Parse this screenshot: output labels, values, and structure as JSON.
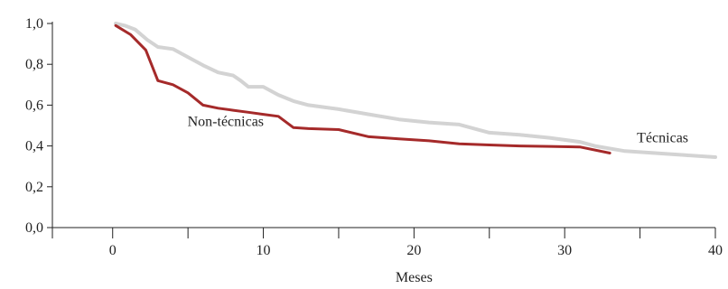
{
  "chart_data": {
    "type": "line",
    "title": "",
    "xlabel": "Meses",
    "ylabel": "",
    "xlim": [
      -4,
      40
    ],
    "ylim": [
      0,
      1
    ],
    "x_ticks": [
      0,
      10,
      20,
      30,
      40
    ],
    "x_tick_labels": [
      "0",
      "10",
      "20",
      "30",
      "40"
    ],
    "x_minor_ticks": [
      -5,
      5,
      15,
      25,
      35
    ],
    "y_ticks": [
      0,
      0.2,
      0.4,
      0.6,
      0.8,
      1.0
    ],
    "y_tick_labels": [
      "0,0",
      "0,2",
      "0,4",
      "0,6",
      "0,8",
      "1,0"
    ],
    "grid": false,
    "legend": "none",
    "series": [
      {
        "name": "Técnicas",
        "color": "#d3d3d3",
        "x": [
          0.2,
          0.8,
          1.5,
          2.3,
          3.0,
          4.0,
          5.0,
          6.0,
          7.0,
          8.0,
          8.5,
          9.0,
          9.5,
          10.0,
          11.0,
          12.0,
          13.0,
          15.0,
          17.0,
          19.0,
          21.0,
          23.0,
          25.0,
          27.0,
          29.0,
          31.0,
          32.0,
          34.0,
          36.0,
          38.0,
          40.0
        ],
        "y": [
          1.0,
          0.99,
          0.97,
          0.92,
          0.885,
          0.875,
          0.835,
          0.795,
          0.76,
          0.745,
          0.72,
          0.69,
          0.69,
          0.69,
          0.65,
          0.62,
          0.6,
          0.58,
          0.555,
          0.53,
          0.515,
          0.505,
          0.465,
          0.455,
          0.44,
          0.42,
          0.4,
          0.375,
          0.365,
          0.355,
          0.345
        ]
      },
      {
        "name": "Non-técnicas",
        "color": "#a52a2a",
        "x": [
          0.2,
          1.2,
          2.2,
          3.0,
          4.0,
          5.0,
          6.0,
          7.0,
          8.0,
          9.0,
          10.0,
          11.0,
          12.0,
          13.0,
          15.0,
          17.0,
          19.0,
          21.0,
          23.0,
          25.0,
          27.0,
          29.0,
          31.0,
          33.0
        ],
        "y": [
          0.99,
          0.945,
          0.87,
          0.72,
          0.7,
          0.66,
          0.6,
          0.585,
          0.575,
          0.565,
          0.555,
          0.545,
          0.49,
          0.485,
          0.48,
          0.445,
          0.435,
          0.425,
          0.41,
          0.405,
          0.4,
          0.398,
          0.395,
          0.365
        ]
      }
    ],
    "annotations": [
      {
        "text": "Non-técnicas",
        "x": 7.5,
        "y": 0.52
      },
      {
        "text": "Técnicas",
        "x": 36.5,
        "y": 0.44
      }
    ]
  }
}
